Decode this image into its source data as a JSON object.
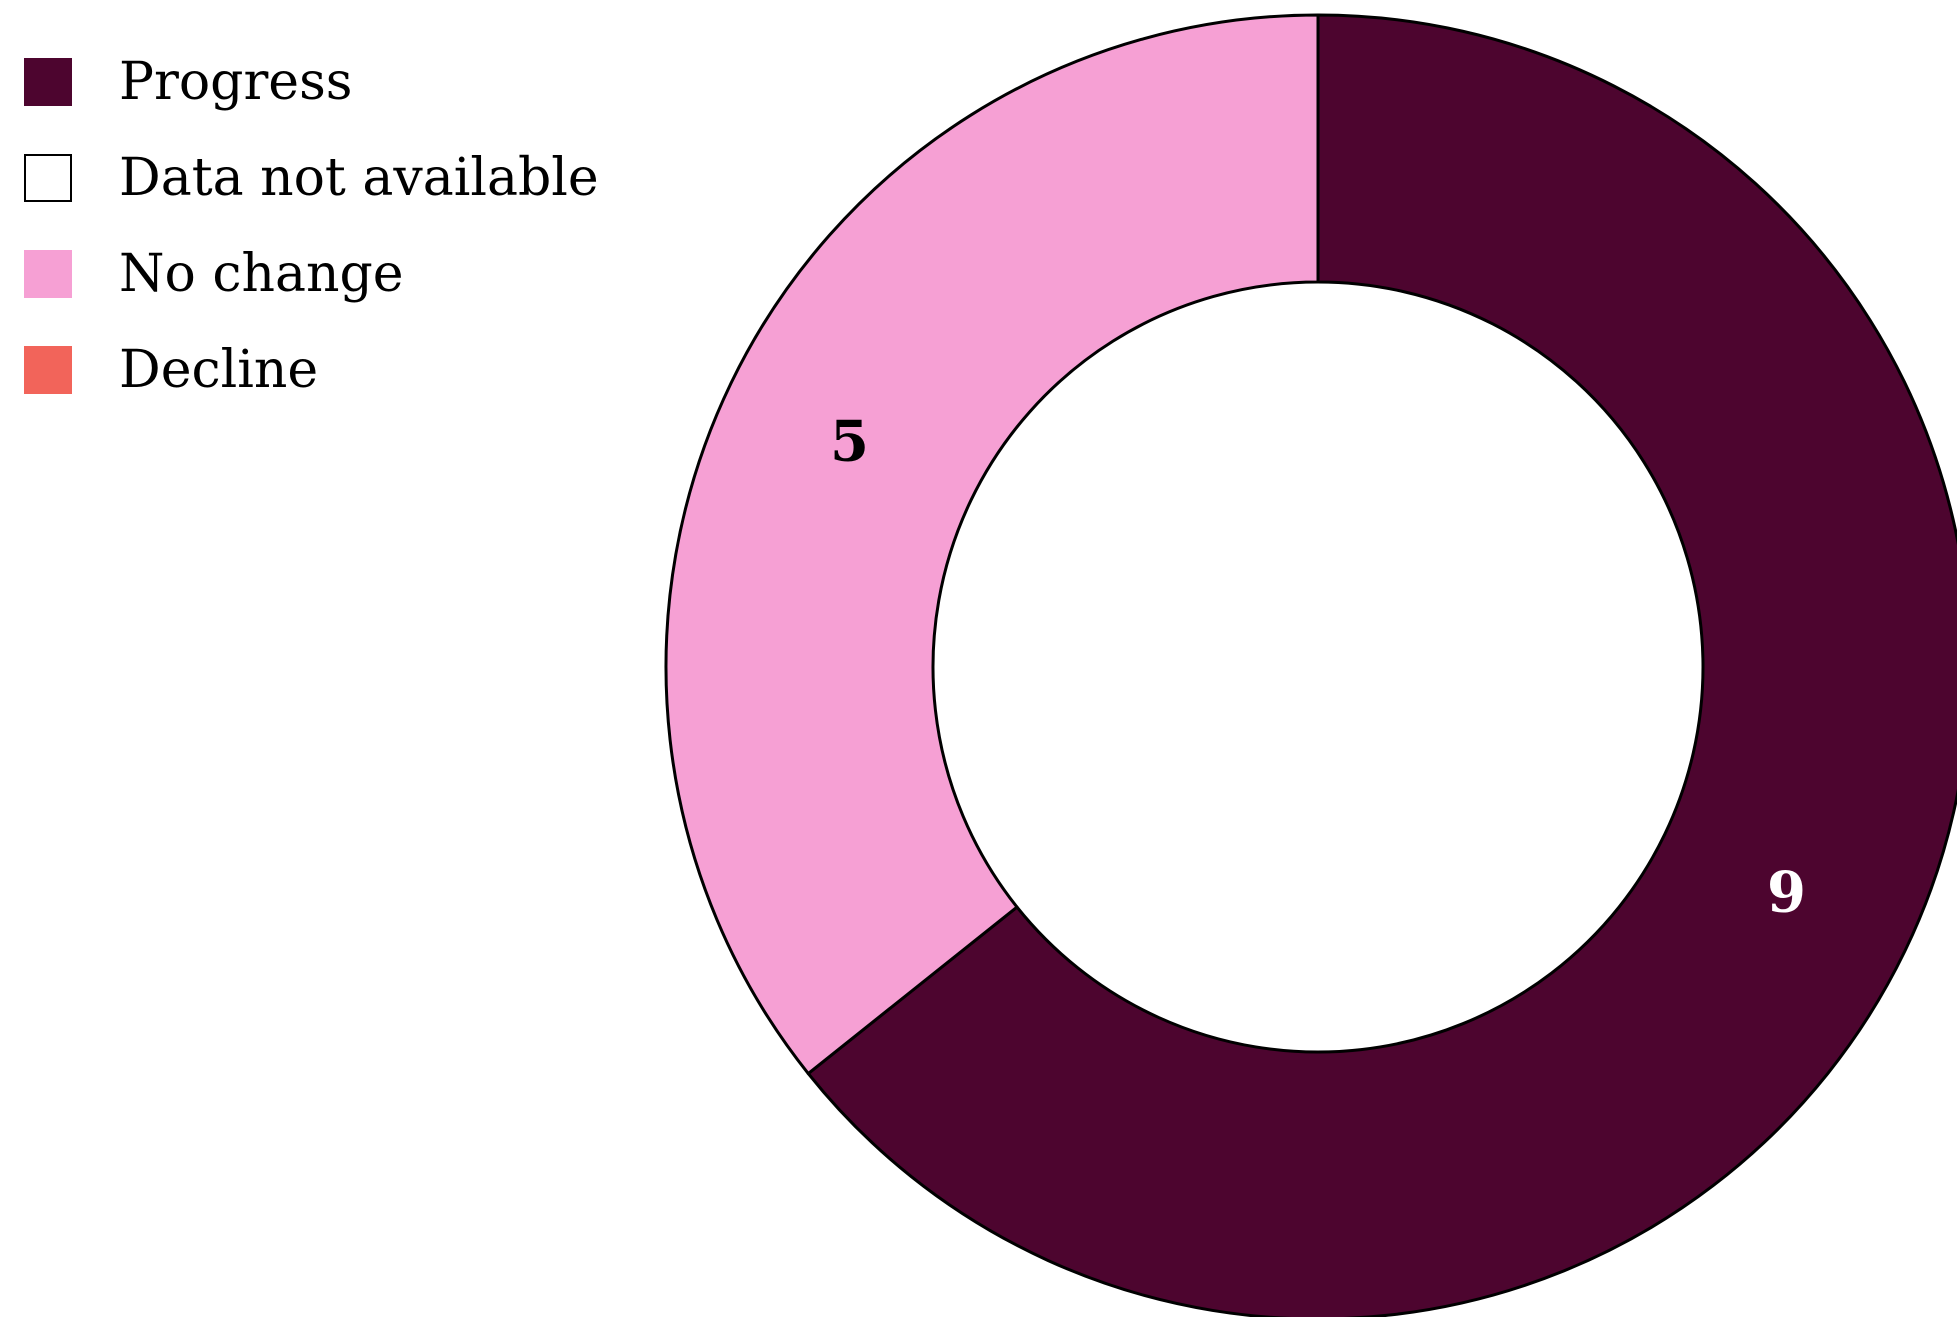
{
  "chart_data": {
    "type": "pie",
    "donut": true,
    "title": "",
    "legend_position": "top-left",
    "legend": [
      {
        "label": "Progress",
        "color": "#4d052f",
        "outlined": false
      },
      {
        "label": "Data not available",
        "color": "#ffffff",
        "outlined": true
      },
      {
        "label": "No change",
        "color": "#f6a0d4",
        "outlined": false
      },
      {
        "label": "Decline",
        "color": "#f2645a",
        "outlined": false
      }
    ],
    "slices": [
      {
        "category": "Progress",
        "value": 9,
        "label": "9",
        "color": "#4d052f",
        "label_color": "#ffffff"
      },
      {
        "category": "Data not available",
        "value": 0,
        "label": "",
        "color": "#ffffff",
        "label_color": "#000000"
      },
      {
        "category": "No change",
        "value": 5,
        "label": "5",
        "color": "#f6a0d4",
        "label_color": "#000000"
      },
      {
        "category": "Decline",
        "value": 0,
        "label": "",
        "color": "#f2645a",
        "label_color": "#000000"
      }
    ]
  }
}
